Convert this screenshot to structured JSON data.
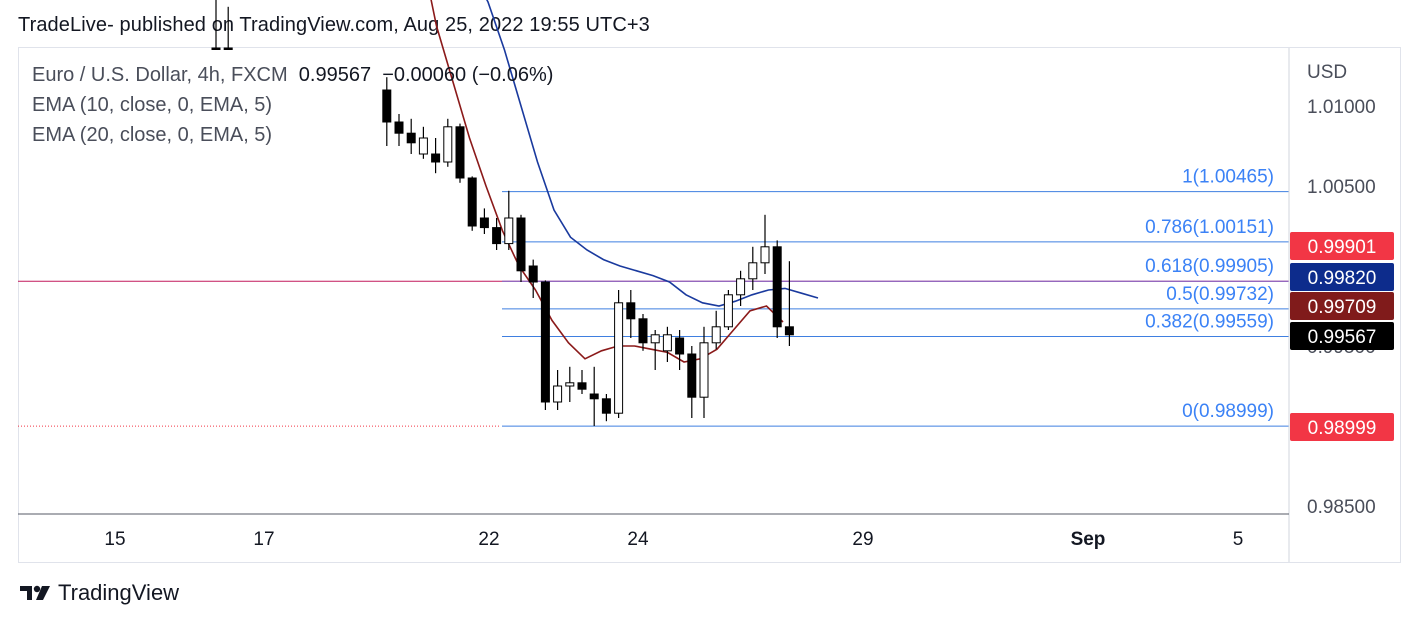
{
  "header": "TradeLive- published on TradingView.com, Aug 25, 2022 19:55 UTC+3",
  "legend": {
    "symbol": "Euro / U.S. Dollar, 4h, FXCM",
    "last": "0.99567",
    "change": "−0.00060 (−0.06%)",
    "ema1": "EMA (10, close, 0, EMA, 5)",
    "ema2": "EMA (20, close, 0, EMA, 5)"
  },
  "footer": {
    "brand": "TradingView"
  },
  "colors": {
    "fib": "#3f7fe0",
    "fibText": "#3b82f6",
    "ema10": "#8b1a1a",
    "ema20": "#1a3a9e",
    "hline": "#c2185b",
    "red": "#f23645",
    "navy": "#0d2c8c",
    "maroon": "#801b1b",
    "black": "#000000"
  },
  "chart_data": {
    "type": "candlestick",
    "currency": "USD",
    "y_ticks": [
      "1.01000",
      "1.00500",
      "0.99500",
      "0.98500"
    ],
    "x_ticks": [
      "15",
      "17",
      "22",
      "24",
      "29",
      "Sep",
      "5"
    ],
    "fib_levels": [
      {
        "label": "1(1.00465)",
        "ratio": 1,
        "value": 1.00465
      },
      {
        "label": "0.786(1.00151)",
        "ratio": 0.786,
        "value": 1.00151
      },
      {
        "label": "0.618(0.99905)",
        "ratio": 0.618,
        "value": 0.99905
      },
      {
        "label": "0.5(0.99732)",
        "ratio": 0.5,
        "value": 0.99732
      },
      {
        "label": "0.382(0.99559)",
        "ratio": 0.382,
        "value": 0.99559
      },
      {
        "label": "0(0.98999)",
        "ratio": 0,
        "value": 0.98999
      }
    ],
    "price_tags": [
      {
        "text": "0.99901",
        "value": 0.99901,
        "color": "red"
      },
      {
        "text": "0.99820",
        "value": 0.9982,
        "color": "navy"
      },
      {
        "text": "0.99709",
        "value": 0.99709,
        "color": "maroon"
      },
      {
        "text": "0.99567",
        "value": 0.99567,
        "color": "black"
      },
      {
        "text": "0.98999",
        "value": 0.98999,
        "color": "red"
      }
    ],
    "candles": [
      {
        "o": 1.0195,
        "h": 1.02,
        "l": 1.0182,
        "c": 1.019
      },
      {
        "o": 1.019,
        "h": 1.021,
        "l": 1.0162,
        "c": 1.017
      },
      {
        "o": 1.011,
        "h": 1.0118,
        "l": 1.0075,
        "c": 1.009
      },
      {
        "o": 1.009,
        "h": 1.0095,
        "l": 1.0075,
        "c": 1.0083
      },
      {
        "o": 1.0083,
        "h": 1.0092,
        "l": 1.007,
        "c": 1.0077
      },
      {
        "o": 1.007,
        "h": 1.0087,
        "l": 1.0067,
        "c": 1.008
      },
      {
        "o": 1.007,
        "h": 1.008,
        "l": 1.0058,
        "c": 1.0065
      },
      {
        "o": 1.0065,
        "h": 1.0092,
        "l": 1.0062,
        "c": 1.0087
      },
      {
        "o": 1.0087,
        "h": 1.0089,
        "l": 1.0052,
        "c": 1.0055
      },
      {
        "o": 1.0055,
        "h": 1.0056,
        "l": 1.0022,
        "c": 1.0025
      },
      {
        "o": 1.003,
        "h": 1.0036,
        "l": 1.002,
        "c": 1.0024
      },
      {
        "o": 1.0024,
        "h": 1.003,
        "l": 1.001,
        "c": 1.0014
      },
      {
        "o": 1.0014,
        "h": 1.0047,
        "l": 1.001,
        "c": 1.003
      },
      {
        "o": 1.003,
        "h": 1.0032,
        "l": 0.999,
        "c": 0.9997
      },
      {
        "o": 1.0,
        "h": 1.0004,
        "l": 0.998,
        "c": 0.999
      },
      {
        "o": 0.999,
        "h": 0.9991,
        "l": 0.991,
        "c": 0.9915
      },
      {
        "o": 0.9915,
        "h": 0.9935,
        "l": 0.991,
        "c": 0.9925
      },
      {
        "o": 0.9925,
        "h": 0.9937,
        "l": 0.9915,
        "c": 0.9927
      },
      {
        "o": 0.9927,
        "h": 0.9935,
        "l": 0.992,
        "c": 0.9923
      },
      {
        "o": 0.992,
        "h": 0.9937,
        "l": 0.99,
        "c": 0.9917
      },
      {
        "o": 0.9917,
        "h": 0.992,
        "l": 0.9903,
        "c": 0.9908
      },
      {
        "o": 0.9908,
        "h": 0.9985,
        "l": 0.9905,
        "c": 0.9977
      },
      {
        "o": 0.9977,
        "h": 0.9985,
        "l": 0.9955,
        "c": 0.9967
      },
      {
        "o": 0.9967,
        "h": 0.997,
        "l": 0.9947,
        "c": 0.9952
      },
      {
        "o": 0.9952,
        "h": 0.996,
        "l": 0.9935,
        "c": 0.9957
      },
      {
        "o": 0.9947,
        "h": 0.9962,
        "l": 0.994,
        "c": 0.9957
      },
      {
        "o": 0.9955,
        "h": 0.996,
        "l": 0.9935,
        "c": 0.9945
      },
      {
        "o": 0.9945,
        "h": 0.995,
        "l": 0.9905,
        "c": 0.9918
      },
      {
        "o": 0.9918,
        "h": 0.9962,
        "l": 0.9905,
        "c": 0.9952
      },
      {
        "o": 0.9952,
        "h": 0.9972,
        "l": 0.9948,
        "c": 0.9962
      },
      {
        "o": 0.9962,
        "h": 0.9985,
        "l": 0.996,
        "c": 0.9982
      },
      {
        "o": 0.9982,
        "h": 0.9997,
        "l": 0.9975,
        "c": 0.9992
      },
      {
        "o": 0.9992,
        "h": 1.0012,
        "l": 0.9985,
        "c": 1.0002
      },
      {
        "o": 1.0002,
        "h": 1.0032,
        "l": 0.9995,
        "c": 1.0012
      },
      {
        "o": 1.0012,
        "h": 1.0016,
        "l": 0.9955,
        "c": 0.9962
      },
      {
        "o": 0.9962,
        "h": 1.0003,
        "l": 0.995,
        "c": 0.9957
      }
    ],
    "ema10": [
      1.02,
      1.015,
      1.0115,
      1.008,
      1.005,
      1.0022,
      1.0,
      0.9985,
      0.9966,
      0.9952,
      0.9942,
      0.9947,
      0.995,
      0.995,
      0.9948,
      0.9946,
      0.994,
      0.9942,
      0.9948,
      0.996,
      0.9972,
      0.9975,
      0.9965
    ],
    "ema20": [
      1.022,
      1.0185,
      1.0165,
      1.0135,
      1.01,
      1.0065,
      1.0035,
      1.0018,
      1.001,
      1.0004,
      1.0,
      0.9997,
      0.9994,
      0.999,
      0.9982,
      0.9977,
      0.9975,
      0.9978,
      0.9982,
      0.9985,
      0.9986,
      0.9983,
      0.998
    ]
  }
}
